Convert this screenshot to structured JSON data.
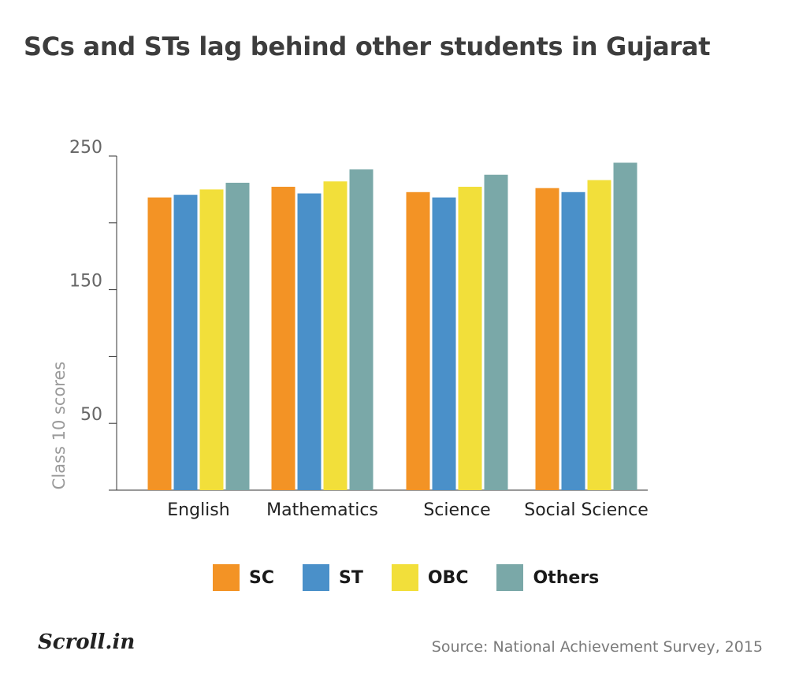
{
  "title": "SCs and STs lag behind other students in Gujarat",
  "logo_text": "Scroll.in",
  "source": "Source: National Achievement Survey, 2015",
  "chart_data": {
    "type": "bar",
    "categories": [
      "English",
      "Mathematics",
      "Science",
      "Social Science"
    ],
    "series": [
      {
        "name": "SC",
        "color": "#f39325",
        "values": [
          219,
          227,
          223,
          226
        ]
      },
      {
        "name": "ST",
        "color": "#4a90c9",
        "values": [
          221,
          222,
          219,
          223
        ]
      },
      {
        "name": "OBC",
        "color": "#f2df3a",
        "values": [
          225,
          231,
          227,
          232
        ]
      },
      {
        "name": "Others",
        "color": "#7aa8a8",
        "values": [
          230,
          240,
          236,
          245
        ]
      }
    ],
    "ylabel": "Class 10 scores",
    "ylim": [
      0,
      250
    ],
    "yticks": [
      0,
      50,
      100,
      150,
      200,
      250
    ],
    "ytick_labels": [
      "50",
      "150",
      "250"
    ],
    "labeled_yticks": [
      50,
      150,
      250
    ],
    "grid": false,
    "legend_position": "bottom"
  }
}
